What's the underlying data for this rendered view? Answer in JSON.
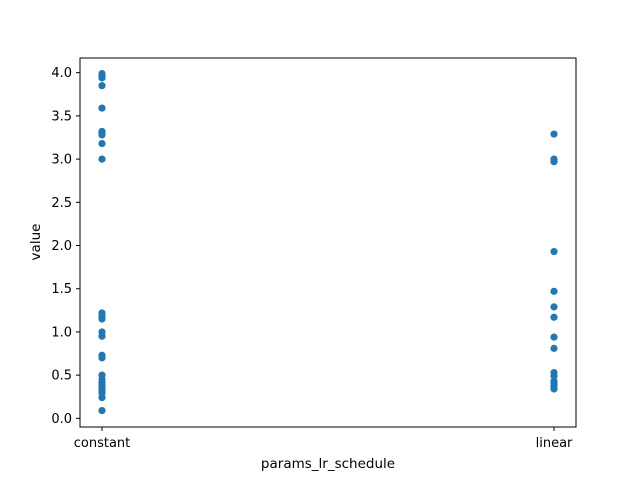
{
  "chart_data": {
    "type": "scatter",
    "title": "",
    "xlabel": "params_lr_schedule",
    "ylabel": "value",
    "categories": [
      "constant",
      "linear"
    ],
    "ylim": [
      -0.1,
      4.17
    ],
    "yticks": [
      "0.0",
      "0.5",
      "1.0",
      "1.5",
      "2.0",
      "2.5",
      "3.0",
      "3.5",
      "4.0"
    ],
    "grid": false,
    "legend": "none",
    "marker_color": "#1f77b4",
    "series": [
      {
        "values": [
          {
            "x": "constant",
            "y": 3.99
          },
          {
            "x": "constant",
            "y": 3.96
          },
          {
            "x": "constant",
            "y": 3.94
          },
          {
            "x": "constant",
            "y": 3.85
          },
          {
            "x": "constant",
            "y": 3.59
          },
          {
            "x": "constant",
            "y": 3.32
          },
          {
            "x": "constant",
            "y": 3.3
          },
          {
            "x": "constant",
            "y": 3.28
          },
          {
            "x": "constant",
            "y": 3.18
          },
          {
            "x": "constant",
            "y": 3.0
          },
          {
            "x": "constant",
            "y": 1.22
          },
          {
            "x": "constant",
            "y": 1.18
          },
          {
            "x": "constant",
            "y": 1.15
          },
          {
            "x": "constant",
            "y": 1.0
          },
          {
            "x": "constant",
            "y": 0.95
          },
          {
            "x": "constant",
            "y": 0.73
          },
          {
            "x": "constant",
            "y": 0.7
          },
          {
            "x": "constant",
            "y": 0.5
          },
          {
            "x": "constant",
            "y": 0.45
          },
          {
            "x": "constant",
            "y": 0.41
          },
          {
            "x": "constant",
            "y": 0.38
          },
          {
            "x": "constant",
            "y": 0.36
          },
          {
            "x": "constant",
            "y": 0.34
          },
          {
            "x": "constant",
            "y": 0.32
          },
          {
            "x": "constant",
            "y": 0.29
          },
          {
            "x": "constant",
            "y": 0.24
          },
          {
            "x": "constant",
            "y": 0.09
          },
          {
            "x": "linear",
            "y": 3.29
          },
          {
            "x": "linear",
            "y": 3.0
          },
          {
            "x": "linear",
            "y": 2.97
          },
          {
            "x": "linear",
            "y": 1.93
          },
          {
            "x": "linear",
            "y": 1.47
          },
          {
            "x": "linear",
            "y": 1.29
          },
          {
            "x": "linear",
            "y": 1.17
          },
          {
            "x": "linear",
            "y": 0.94
          },
          {
            "x": "linear",
            "y": 0.81
          },
          {
            "x": "linear",
            "y": 0.53
          },
          {
            "x": "linear",
            "y": 0.49
          },
          {
            "x": "linear",
            "y": 0.43
          },
          {
            "x": "linear",
            "y": 0.4
          },
          {
            "x": "linear",
            "y": 0.37
          },
          {
            "x": "linear",
            "y": 0.34
          }
        ]
      }
    ]
  }
}
